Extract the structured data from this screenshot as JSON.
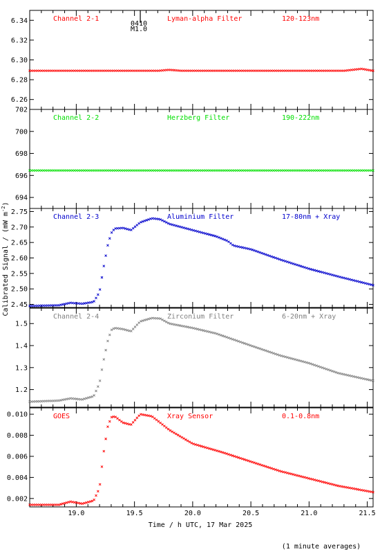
{
  "figure": {
    "ylabel": "Calibrated Signal / (mW m",
    "ylabel_sup": "-2",
    "ylabel_close": ")",
    "xlabel": "Time / h UTC, 17 Mar 2025",
    "footnote": "(1 minute averages)",
    "flare_marker": {
      "line1": "0410",
      "line2": "M1.0",
      "time": 19.55
    }
  },
  "chart_data": [
    {
      "type": "scatter",
      "channel": "Channel 2-1",
      "filter": "Lyman-alpha Filter",
      "range_label": "120-123nm",
      "color": "#ff0000",
      "ylim": [
        6.25,
        6.35
      ],
      "yticks": [
        "6.26",
        "6.28",
        "6.30",
        "6.32",
        "6.34"
      ],
      "xlim": [
        18.6,
        21.55
      ],
      "x": [
        18.6,
        19.0,
        19.5,
        19.7,
        19.8,
        19.9,
        20.0,
        20.5,
        21.0,
        21.3,
        21.45,
        21.5,
        21.55
      ],
      "y": [
        6.289,
        6.289,
        6.289,
        6.289,
        6.29,
        6.289,
        6.289,
        6.289,
        6.289,
        6.289,
        6.291,
        6.29,
        6.289
      ]
    },
    {
      "type": "scatter",
      "channel": "Channel 2-2",
      "filter": "Herzberg Filter",
      "range_label": "190-222nm",
      "color": "#00e000",
      "ylim": [
        693,
        702
      ],
      "yticks": [
        "694",
        "696",
        "698",
        "700",
        "702"
      ],
      "xlim": [
        18.6,
        21.55
      ],
      "x": [
        18.6,
        19.0,
        19.5,
        20.0,
        20.5,
        21.0,
        21.55
      ],
      "y": [
        696.45,
        696.45,
        696.45,
        696.45,
        696.45,
        696.45,
        696.45
      ]
    },
    {
      "type": "scatter",
      "channel": "Channel 2-3",
      "filter": "Aluminium Filter",
      "range_label": "17-80nm + Xray",
      "color": "#0000cc",
      "ylim": [
        2.44,
        2.76
      ],
      "yticks": [
        "2.45",
        "2.50",
        "2.55",
        "2.60",
        "2.65",
        "2.70",
        "2.75"
      ],
      "xlim": [
        18.6,
        21.55
      ],
      "x": [
        18.6,
        18.85,
        18.95,
        19.05,
        19.15,
        19.2,
        19.23,
        19.27,
        19.3,
        19.33,
        19.4,
        19.47,
        19.55,
        19.65,
        19.72,
        19.8,
        20.0,
        20.2,
        20.3,
        20.35,
        20.5,
        20.75,
        21.0,
        21.25,
        21.55
      ],
      "y": [
        2.445,
        2.447,
        2.455,
        2.452,
        2.458,
        2.49,
        2.56,
        2.64,
        2.68,
        2.695,
        2.697,
        2.69,
        2.715,
        2.728,
        2.725,
        2.71,
        2.69,
        2.67,
        2.655,
        2.64,
        2.628,
        2.595,
        2.565,
        2.54,
        2.512
      ]
    },
    {
      "type": "scatter",
      "channel": "Channel 2-4",
      "filter": "Zirconium Filter",
      "range_label": "6-20nm + Xray",
      "color": "#808080",
      "ylim": [
        1.12,
        1.57
      ],
      "yticks": [
        "1.2",
        "1.3",
        "1.4",
        "1.5"
      ],
      "xlim": [
        18.6,
        21.55
      ],
      "x": [
        18.6,
        18.85,
        18.95,
        19.05,
        19.15,
        19.2,
        19.23,
        19.27,
        19.3,
        19.33,
        19.4,
        19.47,
        19.55,
        19.65,
        19.72,
        19.8,
        20.0,
        20.2,
        20.5,
        20.75,
        21.0,
        21.25,
        21.55
      ],
      "y": [
        1.145,
        1.15,
        1.16,
        1.155,
        1.17,
        1.23,
        1.32,
        1.42,
        1.47,
        1.48,
        1.475,
        1.465,
        1.51,
        1.525,
        1.523,
        1.5,
        1.48,
        1.455,
        1.4,
        1.355,
        1.32,
        1.275,
        1.24
      ]
    },
    {
      "type": "scatter",
      "channel": "GOES",
      "filter": "Xray Sensor",
      "range_label": "0.1-0.8nm",
      "color": "#ff0000",
      "ylim": [
        0.0012,
        0.0106
      ],
      "yticks": [
        "0.002",
        "0.004",
        "0.006",
        "0.008",
        "0.010"
      ],
      "xlim": [
        18.6,
        21.55
      ],
      "xticks": [
        "19.0",
        "19.5",
        "20.0",
        "20.5",
        "21.0",
        "21.5"
      ],
      "x": [
        18.6,
        18.85,
        18.95,
        19.05,
        19.15,
        19.2,
        19.23,
        19.27,
        19.3,
        19.33,
        19.4,
        19.47,
        19.55,
        19.65,
        19.72,
        19.8,
        20.0,
        20.25,
        20.5,
        20.75,
        21.0,
        21.25,
        21.55
      ],
      "y": [
        0.0014,
        0.0014,
        0.0017,
        0.0015,
        0.0018,
        0.003,
        0.006,
        0.0088,
        0.0097,
        0.0098,
        0.0092,
        0.009,
        0.01,
        0.0098,
        0.0092,
        0.0085,
        0.0072,
        0.0064,
        0.0055,
        0.0046,
        0.0039,
        0.0032,
        0.0026
      ]
    }
  ]
}
